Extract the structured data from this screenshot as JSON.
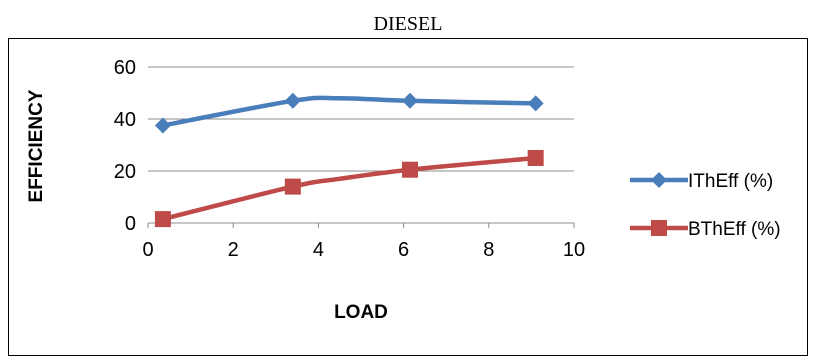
{
  "chart_data": {
    "type": "line",
    "title": "DIESEL",
    "xlabel": "LOAD",
    "ylabel": "EFFICIENCY",
    "xlim": [
      0,
      10
    ],
    "ylim": [
      0,
      60
    ],
    "xticks": [
      0,
      2,
      4,
      6,
      8,
      10
    ],
    "yticks": [
      0,
      20,
      40,
      60
    ],
    "grid": "horizontal",
    "legend_position": "right",
    "series": [
      {
        "name": "IThEff (%)",
        "color": "#4a7ebb",
        "marker": "diamond",
        "x": [
          0.35,
          3.4,
          4.5,
          6.15,
          9.1
        ],
        "y": [
          37.5,
          47,
          48,
          47,
          46
        ],
        "marked": [
          true,
          true,
          false,
          true,
          true
        ]
      },
      {
        "name": "BThEff (%)",
        "color": "#be4b48",
        "marker": "square",
        "x": [
          0.35,
          3.4,
          4.5,
          6.15,
          9.1
        ],
        "y": [
          1.5,
          14,
          17,
          20.5,
          25
        ],
        "marked": [
          true,
          true,
          false,
          true,
          true
        ]
      }
    ]
  }
}
